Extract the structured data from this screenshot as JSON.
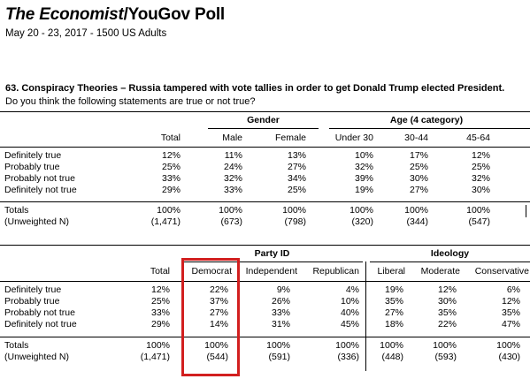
{
  "header": {
    "brand": "The Economist",
    "rest": "/YouGov Poll",
    "subtitle": "May 20 - 23, 2017 - 1500 US Adults"
  },
  "question": {
    "title": "63. Conspiracy Theories – Russia tampered with vote tallies in order to get Donald Trump elected President.",
    "prompt": "Do you think the following statements are true or not true?"
  },
  "table1": {
    "group_gender": "Gender",
    "group_age": "Age (4 category)",
    "columns": [
      "Total",
      "Male",
      "Female",
      "Under 30",
      "30-44",
      "45-64"
    ],
    "rows": [
      {
        "label": "Definitely true",
        "values": [
          "12%",
          "11%",
          "13%",
          "10%",
          "17%",
          "12%"
        ]
      },
      {
        "label": "Probably true",
        "values": [
          "25%",
          "24%",
          "27%",
          "32%",
          "25%",
          "25%"
        ]
      },
      {
        "label": "Probably not true",
        "values": [
          "33%",
          "32%",
          "34%",
          "39%",
          "30%",
          "32%"
        ]
      },
      {
        "label": "Definitely not true",
        "values": [
          "29%",
          "33%",
          "25%",
          "19%",
          "27%",
          "30%"
        ]
      }
    ],
    "totals": {
      "label": "Totals",
      "values": [
        "100%",
        "100%",
        "100%",
        "100%",
        "100%",
        "100%"
      ]
    },
    "unweighted": {
      "label": "(Unweighted N)",
      "values": [
        "(1,471)",
        "(673)",
        "(798)",
        "(320)",
        "(344)",
        "(547)"
      ]
    }
  },
  "table2": {
    "group_party": "Party ID",
    "group_ideology": "Ideology",
    "columns": [
      "Total",
      "Democrat",
      "Independent",
      "Republican",
      "Liberal",
      "Moderate",
      "Conservative"
    ],
    "rows": [
      {
        "label": "Definitely true",
        "values": [
          "12%",
          "22%",
          "9%",
          "4%",
          "19%",
          "12%",
          "6%"
        ]
      },
      {
        "label": "Probably true",
        "values": [
          "25%",
          "37%",
          "26%",
          "10%",
          "35%",
          "30%",
          "12%"
        ]
      },
      {
        "label": "Probably not true",
        "values": [
          "33%",
          "27%",
          "33%",
          "40%",
          "27%",
          "35%",
          "35%"
        ]
      },
      {
        "label": "Definitely not true",
        "values": [
          "29%",
          "14%",
          "31%",
          "45%",
          "18%",
          "22%",
          "47%"
        ]
      }
    ],
    "totals": {
      "label": "Totals",
      "values": [
        "100%",
        "100%",
        "100%",
        "100%",
        "100%",
        "100%",
        "100%"
      ]
    },
    "unweighted": {
      "label": "(Unweighted N)",
      "values": [
        "(1,471)",
        "(544)",
        "(591)",
        "(336)",
        "(448)",
        "(593)",
        "(430)"
      ]
    }
  },
  "colors": {
    "highlight": "#d21f1f"
  }
}
